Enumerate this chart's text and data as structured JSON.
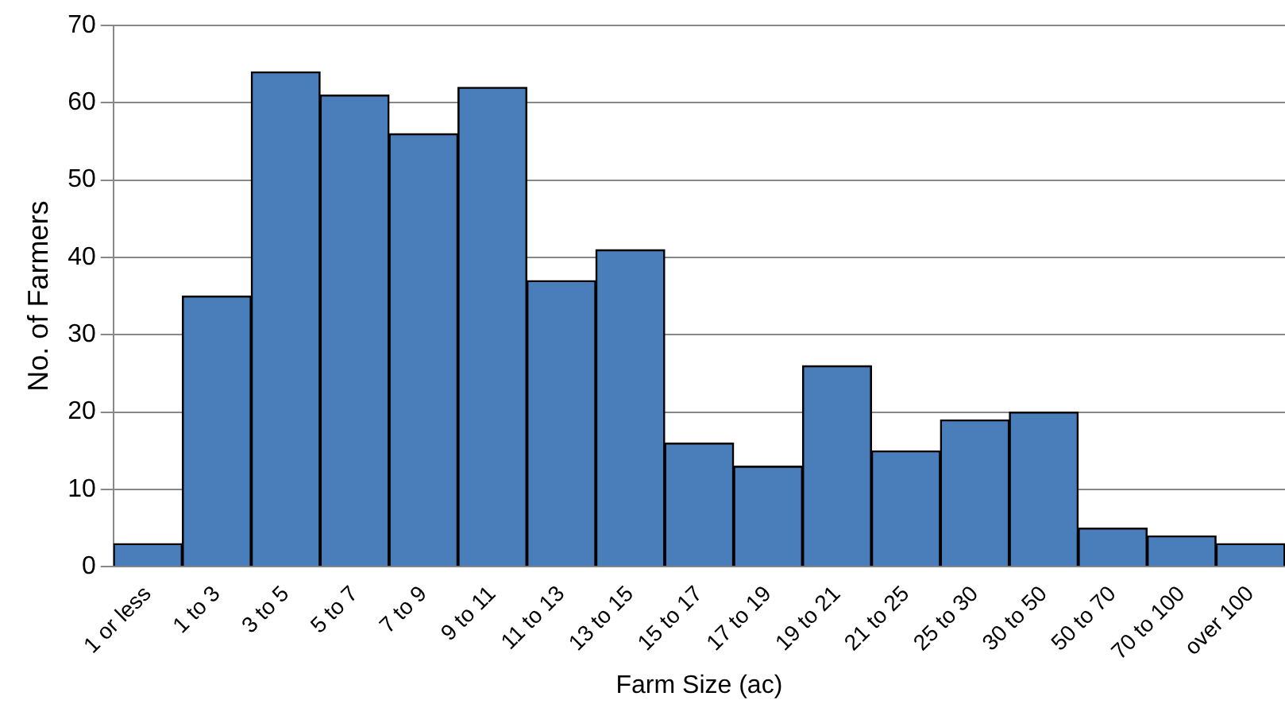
{
  "chart_data": {
    "type": "bar",
    "xlabel": "Farm Size (ac)",
    "ylabel": "No. of Farmers",
    "categories": [
      "1 or less",
      "1 to 3",
      "3 to 5",
      "5 to 7",
      "7 to 9",
      "9 to 11",
      "11 to 13",
      "13 to 15",
      "15 to 17",
      "17 to 19",
      "19 to 21",
      "21 to 25",
      "25 to 30",
      "30 to 50",
      "50 to 70",
      "70 to 100",
      "over 100"
    ],
    "values": [
      3,
      35,
      64,
      61,
      56,
      62,
      37,
      41,
      16,
      13,
      26,
      15,
      19,
      20,
      5,
      4,
      3
    ],
    "color": "#4a7ebb",
    "ylim": [
      0,
      70
    ],
    "yticks": [
      0,
      10,
      20,
      30,
      40,
      50,
      60,
      70
    ],
    "grid": "y",
    "legend": false
  }
}
